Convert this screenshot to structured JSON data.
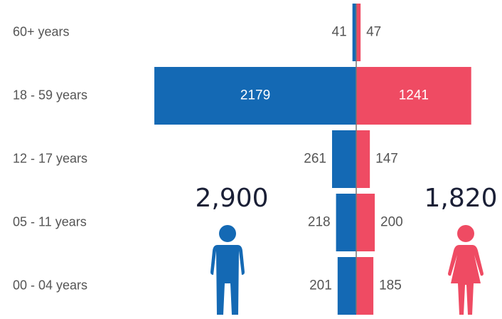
{
  "chart_data": {
    "type": "pyramid",
    "categories": [
      "60+ years",
      "18 - 59 years",
      "12 - 17 years",
      "05 - 11 years",
      "00 - 04 years"
    ],
    "series": [
      {
        "color": "#1469b4",
        "values": [
          41,
          2179,
          261,
          218,
          201
        ],
        "total_label": "2,900"
      },
      {
        "color": "#ef4b63",
        "values": [
          47,
          1241,
          147,
          200,
          185
        ],
        "total_label": "1,820"
      }
    ]
  }
}
